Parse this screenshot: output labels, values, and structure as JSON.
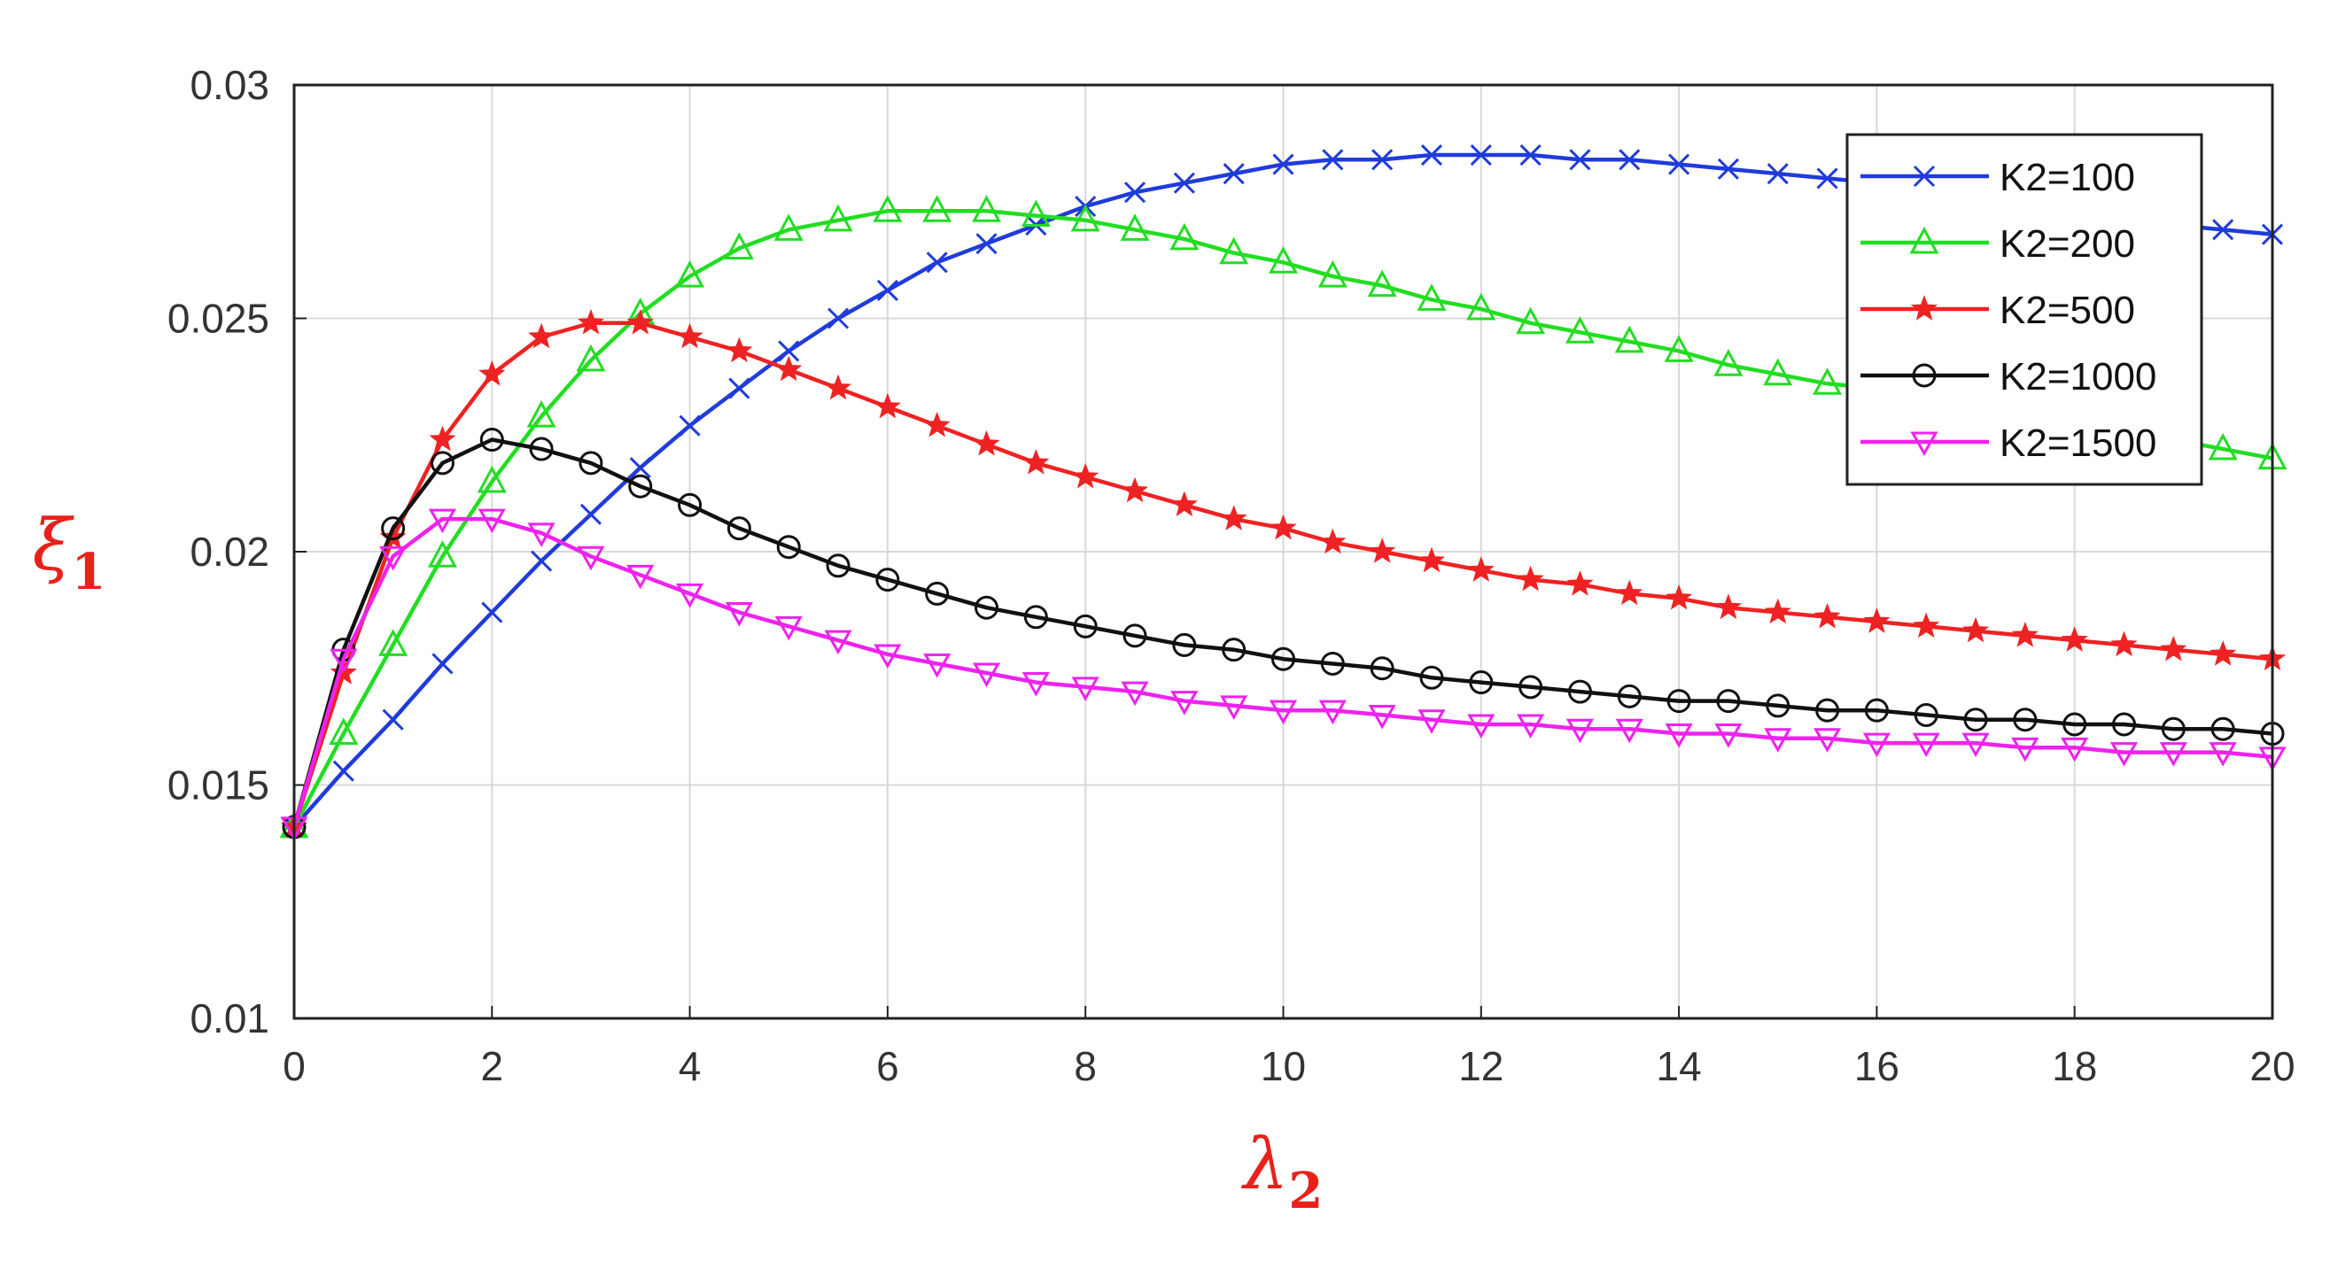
{
  "chart_data": {
    "type": "line",
    "title": "",
    "xlabel": {
      "symbol": "λ",
      "subscript": "2"
    },
    "ylabel": {
      "symbol": "ξ",
      "subscript": "1"
    },
    "xlim": [
      0,
      20
    ],
    "ylim": [
      0.01,
      0.03
    ],
    "x_ticks": [
      0,
      2,
      4,
      6,
      8,
      10,
      12,
      14,
      16,
      18,
      20
    ],
    "y_ticks": [
      "0.01",
      "0.015",
      "0.02",
      "0.025",
      "0.03"
    ],
    "grid": true,
    "legend_position": "top-right",
    "x": [
      0,
      0.5,
      1,
      1.5,
      2,
      2.5,
      3,
      3.5,
      4,
      4.5,
      5,
      5.5,
      6,
      6.5,
      7,
      7.5,
      8,
      8.5,
      9,
      9.5,
      10,
      10.5,
      11,
      11.5,
      12,
      12.5,
      13,
      13.5,
      14,
      14.5,
      15,
      15.5,
      16,
      16.5,
      17,
      17.5,
      18,
      18.5,
      19,
      19.5,
      20
    ],
    "series": [
      {
        "name": "K2=100",
        "color": "#1f3bdb",
        "marker": "x",
        "values": [
          0.0141,
          0.0153,
          0.0164,
          0.0176,
          0.0187,
          0.0198,
          0.0208,
          0.0218,
          0.0227,
          0.0235,
          0.0243,
          0.025,
          0.0256,
          0.0262,
          0.0266,
          0.027,
          0.0274,
          0.0277,
          0.0279,
          0.0281,
          0.0283,
          0.0284,
          0.0284,
          0.0285,
          0.0285,
          0.0285,
          0.0284,
          0.0284,
          0.0283,
          0.0282,
          0.0281,
          0.028,
          0.0279,
          0.0278,
          0.0277,
          0.0275,
          0.0274,
          0.0272,
          0.027,
          0.0269,
          0.0268
        ]
      },
      {
        "name": "K2=200",
        "color": "#22dd22",
        "marker": "triangle-up",
        "values": [
          0.0141,
          0.0161,
          0.018,
          0.0199,
          0.0215,
          0.0229,
          0.0241,
          0.0251,
          0.0259,
          0.0265,
          0.0269,
          0.0271,
          0.0273,
          0.0273,
          0.0273,
          0.0272,
          0.0271,
          0.0269,
          0.0267,
          0.0264,
          0.0262,
          0.0259,
          0.0257,
          0.0254,
          0.0252,
          0.0249,
          0.0247,
          0.0245,
          0.0243,
          0.024,
          0.0238,
          0.0236,
          0.0235,
          0.0233,
          0.0231,
          0.0229,
          0.0228,
          0.0226,
          0.0224,
          0.0222,
          0.022
        ]
      },
      {
        "name": "K2=500",
        "color": "#ee2222",
        "marker": "star",
        "values": [
          0.0141,
          0.0174,
          0.0203,
          0.0224,
          0.0238,
          0.0246,
          0.0249,
          0.0249,
          0.0246,
          0.0243,
          0.0239,
          0.0235,
          0.0231,
          0.0227,
          0.0223,
          0.0219,
          0.0216,
          0.0213,
          0.021,
          0.0207,
          0.0205,
          0.0202,
          0.02,
          0.0198,
          0.0196,
          0.0194,
          0.0193,
          0.0191,
          0.019,
          0.0188,
          0.0187,
          0.0186,
          0.0185,
          0.0184,
          0.0183,
          0.0182,
          0.0181,
          0.018,
          0.0179,
          0.0178,
          0.0177
        ]
      },
      {
        "name": "K2=1000",
        "color": "#111111",
        "marker": "circle",
        "values": [
          0.0141,
          0.0179,
          0.0205,
          0.0219,
          0.0224,
          0.0222,
          0.0219,
          0.0214,
          0.021,
          0.0205,
          0.0201,
          0.0197,
          0.0194,
          0.0191,
          0.0188,
          0.0186,
          0.0184,
          0.0182,
          0.018,
          0.0179,
          0.0177,
          0.0176,
          0.0175,
          0.0173,
          0.0172,
          0.0171,
          0.017,
          0.0169,
          0.0168,
          0.0168,
          0.0167,
          0.0166,
          0.0166,
          0.0165,
          0.0164,
          0.0164,
          0.0163,
          0.0163,
          0.0162,
          0.0162,
          0.0161
        ]
      },
      {
        "name": "K2=1500",
        "color": "#ee22ee",
        "marker": "triangle-down",
        "values": [
          0.0141,
          0.0177,
          0.0199,
          0.0207,
          0.0207,
          0.0204,
          0.0199,
          0.0195,
          0.0191,
          0.0187,
          0.0184,
          0.0181,
          0.0178,
          0.0176,
          0.0174,
          0.0172,
          0.0171,
          0.017,
          0.0168,
          0.0167,
          0.0166,
          0.0166,
          0.0165,
          0.0164,
          0.0163,
          0.0163,
          0.0162,
          0.0162,
          0.0161,
          0.0161,
          0.016,
          0.016,
          0.0159,
          0.0159,
          0.0159,
          0.0158,
          0.0158,
          0.0157,
          0.0157,
          0.0157,
          0.0156
        ]
      }
    ]
  }
}
